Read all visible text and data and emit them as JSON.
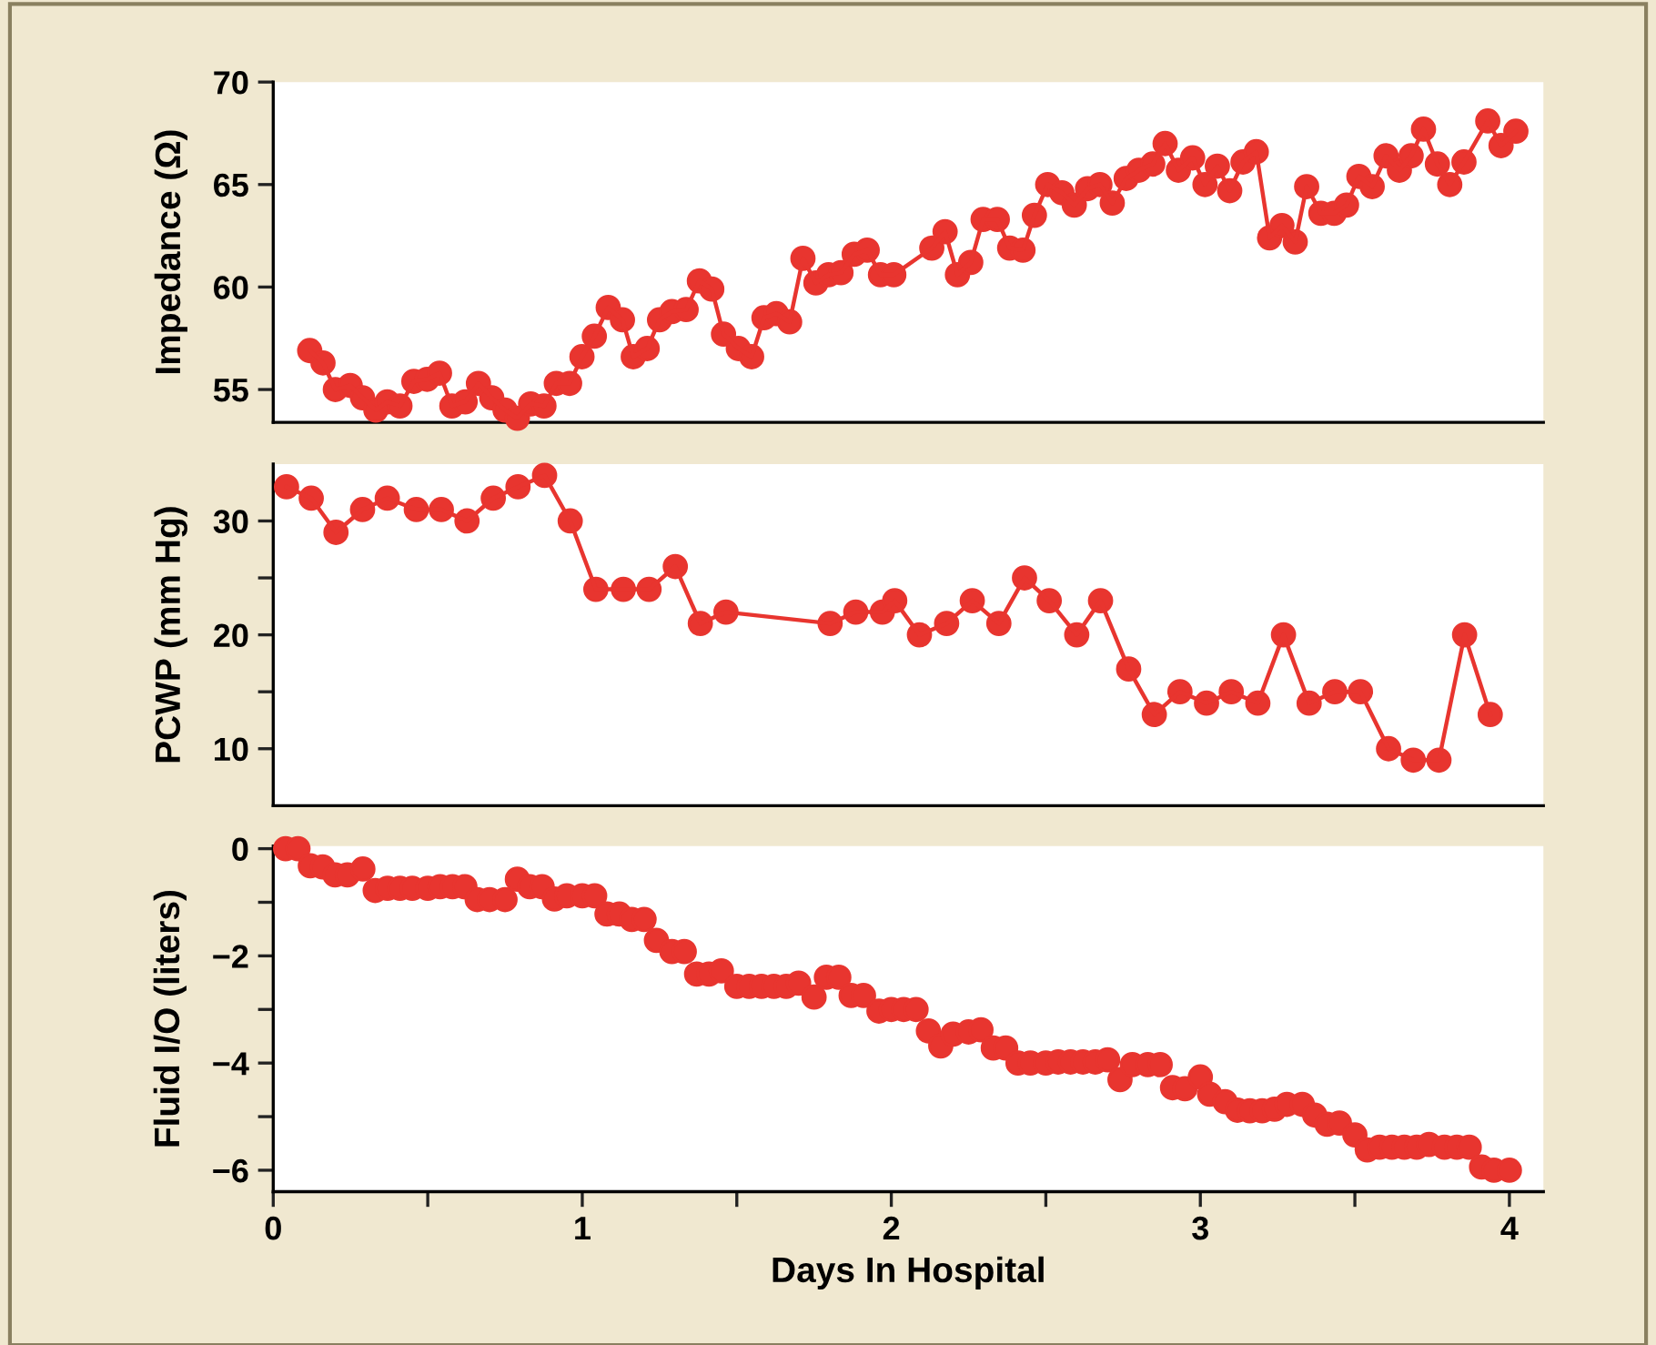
{
  "chart_data": [
    {
      "type": "line",
      "ylabel": "Impedance (Ω)",
      "marker": "circle",
      "line_style": "solid",
      "tick_labels": "y",
      "xlim": [
        0,
        4.11
      ],
      "ylim": [
        53.4,
        70
      ],
      "yticks": [
        55,
        60,
        65,
        70
      ],
      "series": [
        {
          "color": "#e8352f",
          "x": [
            0.118,
            0.161,
            0.201,
            0.249,
            0.289,
            0.332,
            0.369,
            0.41,
            0.455,
            0.498,
            0.538,
            0.578,
            0.621,
            0.664,
            0.707,
            0.75,
            0.79,
            0.833,
            0.876,
            0.916,
            0.959,
            0.999,
            1.039,
            1.084,
            1.13,
            1.165,
            1.21,
            1.25,
            1.29,
            1.336,
            1.379,
            1.419,
            1.457,
            1.505,
            1.548,
            1.588,
            1.628,
            1.671,
            1.714,
            1.756,
            1.797,
            1.837,
            1.88,
            1.922,
            1.965,
            2.008,
            2.131,
            2.174,
            2.214,
            2.257,
            2.297,
            2.343,
            2.383,
            2.426,
            2.463,
            2.506,
            2.552,
            2.592,
            2.635,
            2.675,
            2.715,
            2.76,
            2.801,
            2.846,
            2.886,
            2.929,
            2.975,
            3.015,
            3.055,
            3.095,
            3.138,
            3.181,
            3.224,
            3.264,
            3.307,
            3.344,
            3.39,
            3.433,
            3.473,
            3.513,
            3.556,
            3.601,
            3.644,
            3.682,
            3.722,
            3.767,
            3.807,
            3.853,
            3.93,
            3.973,
            4.021
          ],
          "values": [
            56.9,
            56.3,
            55.0,
            55.2,
            54.6,
            54.0,
            54.4,
            54.2,
            55.4,
            55.5,
            55.8,
            54.2,
            54.4,
            55.3,
            54.6,
            54.0,
            53.6,
            54.3,
            54.2,
            55.3,
            55.3,
            56.6,
            57.6,
            59.0,
            58.4,
            56.6,
            57.0,
            58.4,
            58.8,
            58.9,
            60.3,
            59.9,
            57.7,
            57.0,
            56.6,
            58.5,
            58.7,
            58.3,
            61.4,
            60.2,
            60.6,
            60.7,
            61.6,
            61.8,
            60.6,
            60.6,
            61.9,
            62.7,
            60.6,
            61.2,
            63.3,
            63.3,
            61.9,
            61.8,
            63.5,
            65.0,
            64.6,
            64.0,
            64.8,
            65.0,
            64.1,
            65.3,
            65.7,
            66.0,
            67.0,
            65.7,
            66.3,
            65.0,
            65.9,
            64.7,
            66.1,
            66.6,
            62.4,
            63.0,
            62.2,
            64.9,
            63.6,
            63.6,
            64.0,
            65.4,
            64.9,
            66.4,
            65.7,
            66.4,
            67.7,
            66.0,
            65.0,
            66.1,
            68.1,
            66.9,
            67.6
          ]
        }
      ]
    },
    {
      "type": "line",
      "ylabel": "PCWP (mm Hg)",
      "marker": "circle",
      "line_style": "solid",
      "tick_labels": "y",
      "xlim": [
        0,
        4.11
      ],
      "ylim": [
        5,
        35
      ],
      "yticks": [
        10,
        {
          "value": 15,
          "label": null
        },
        20,
        {
          "value": 25,
          "label": null
        },
        30
      ],
      "series": [
        {
          "color": "#e8352f",
          "x": [
            0.043,
            0.123,
            0.203,
            0.289,
            0.369,
            0.463,
            0.544,
            0.627,
            0.712,
            0.792,
            0.878,
            0.961,
            1.044,
            1.133,
            1.216,
            1.301,
            1.382,
            1.465,
            1.802,
            1.885,
            1.971,
            2.011,
            2.091,
            2.179,
            2.262,
            2.348,
            2.431,
            2.511,
            2.6,
            2.677,
            2.768,
            2.851,
            2.934,
            3.02,
            3.1,
            3.186,
            3.269,
            3.352,
            3.435,
            3.518,
            3.609,
            3.689,
            3.772,
            3.855,
            3.938
          ],
          "values": [
            33,
            32,
            29,
            31,
            32,
            31,
            31,
            30,
            32,
            33,
            34,
            30,
            24,
            24,
            24,
            26,
            21,
            22,
            21,
            22,
            22,
            23,
            20,
            21,
            23,
            21,
            25,
            23,
            20,
            23,
            17,
            13,
            15,
            14,
            15,
            14,
            20,
            14,
            15,
            15,
            10,
            9,
            9,
            20,
            13
          ]
        }
      ]
    },
    {
      "type": "scatter",
      "ylabel": "Fluid I/O (liters)",
      "xlabel": "Days In Hospital",
      "marker": "circle",
      "xlim": [
        0,
        4.11
      ],
      "ylim": [
        -6.4,
        0.05
      ],
      "xticks": [
        0,
        {
          "value": 0.5,
          "label": null
        },
        1,
        {
          "value": 1.5,
          "label": null
        },
        2,
        {
          "value": 2.5,
          "label": null
        },
        3,
        {
          "value": 3.5,
          "label": null
        },
        4
      ],
      "yticks": [
        {
          "value": -6,
          "label": "−6"
        },
        {
          "value": -5,
          "label": null
        },
        {
          "value": -4,
          "label": "−4"
        },
        {
          "value": -3,
          "label": null
        },
        {
          "value": -2,
          "label": "−2"
        },
        {
          "value": -1,
          "label": null
        },
        0
      ],
      "series": [
        {
          "color": "#e8352f",
          "x": [
            0.04,
            0.08,
            0.12,
            0.16,
            0.2,
            0.24,
            0.29,
            0.33,
            0.37,
            0.41,
            0.45,
            0.5,
            0.54,
            0.58,
            0.62,
            0.66,
            0.7,
            0.75,
            0.79,
            0.83,
            0.87,
            0.91,
            0.95,
            1.0,
            1.04,
            1.08,
            1.12,
            1.16,
            1.2,
            1.24,
            1.29,
            1.33,
            1.37,
            1.41,
            1.45,
            1.5,
            1.54,
            1.58,
            1.62,
            1.66,
            1.7,
            1.75,
            1.79,
            1.83,
            1.87,
            1.91,
            1.96,
            2.0,
            2.04,
            2.08,
            2.12,
            2.16,
            2.2,
            2.25,
            2.29,
            2.33,
            2.37,
            2.41,
            2.45,
            2.5,
            2.54,
            2.58,
            2.62,
            2.66,
            2.7,
            2.74,
            2.78,
            2.83,
            2.87,
            2.91,
            2.95,
            3.0,
            3.03,
            3.08,
            3.12,
            3.16,
            3.2,
            3.24,
            3.28,
            3.33,
            3.37,
            3.41,
            3.45,
            3.5,
            3.54,
            3.58,
            3.62,
            3.66,
            3.7,
            3.74,
            3.79,
            3.83,
            3.87,
            3.91,
            3.95,
            4.0
          ],
          "values": [
            0,
            0,
            -0.32,
            -0.34,
            -0.49,
            -0.49,
            -0.38,
            -0.78,
            -0.74,
            -0.74,
            -0.74,
            -0.74,
            -0.71,
            -0.71,
            -0.71,
            -0.95,
            -0.95,
            -0.95,
            -0.57,
            -0.71,
            -0.71,
            -0.94,
            -0.88,
            -0.88,
            -0.88,
            -1.22,
            -1.22,
            -1.32,
            -1.32,
            -1.71,
            -1.92,
            -1.92,
            -2.34,
            -2.34,
            -2.28,
            -2.57,
            -2.57,
            -2.57,
            -2.57,
            -2.57,
            -2.51,
            -2.77,
            -2.4,
            -2.4,
            -2.74,
            -2.74,
            -3.03,
            -3.0,
            -3.0,
            -3.0,
            -3.4,
            -3.68,
            -3.46,
            -3.42,
            -3.38,
            -3.72,
            -3.72,
            -4.0,
            -4.0,
            -4.0,
            -3.98,
            -3.98,
            -3.98,
            -3.98,
            -3.94,
            -4.31,
            -4.03,
            -4.03,
            -4.03,
            -4.46,
            -4.48,
            -4.26,
            -4.58,
            -4.72,
            -4.88,
            -4.89,
            -4.89,
            -4.86,
            -4.77,
            -4.77,
            -4.97,
            -5.14,
            -5.12,
            -5.34,
            -5.62,
            -5.57,
            -5.57,
            -5.57,
            -5.57,
            -5.52,
            -5.57,
            -5.57,
            -5.57,
            -5.94,
            -6.0,
            -6.0
          ]
        }
      ]
    }
  ]
}
